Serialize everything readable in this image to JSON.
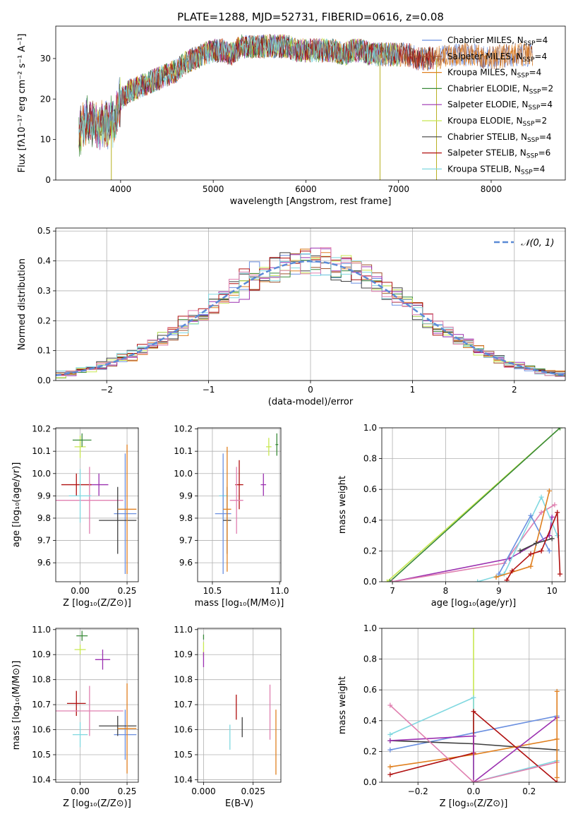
{
  "title": "PLATE=1288, MJD=52731, FIBERID=0616, z=0.08",
  "colors": {
    "chabrier_miles": "#6a8fe0",
    "salpeter_miles": "#a0522d",
    "kroupa_miles": "#e08020",
    "chabrier_elodie": "#3a8a3a",
    "salpeter_elodie": "#9b30b0",
    "kroupa_elodie": "#c8e850",
    "chabrier_stelib": "#404040",
    "salpeter_stelib": "#b01010",
    "kroupa_stelib": "#80d8e0",
    "pink": "#e080b0",
    "gaussian": "#5b8ad6"
  },
  "chart_data": [
    {
      "id": "spectrum",
      "type": "line",
      "xlabel": "wavelength [Angstrom, rest frame]",
      "ylabel": "Flux [fλ10⁻¹⁷ erg cm⁻² s⁻¹ A⁻¹]",
      "xlim": [
        3300,
        8800
      ],
      "ylim": [
        0,
        38
      ],
      "xticks": [
        "4000",
        "5000",
        "6000",
        "7000",
        "8000"
      ],
      "yticks": [
        "0",
        "10",
        "20",
        "30"
      ],
      "legend_position": "top-right",
      "legend": [
        {
          "label": "Chabrier MILES, N",
          "sub": "SSP",
          "val": "=4"
        },
        {
          "label": "Salpeter MILES, N",
          "sub": "SSP",
          "val": "=4"
        },
        {
          "label": "Kroupa MILES, N",
          "sub": "SSP",
          "val": "=4"
        },
        {
          "label": "Chabrier ELODIE, N",
          "sub": "SSP",
          "val": "=2"
        },
        {
          "label": "Salpeter ELODIE, N",
          "sub": "SSP",
          "val": "=4"
        },
        {
          "label": "Kroupa ELODIE, N",
          "sub": "SSP",
          "val": "=2"
        },
        {
          "label": "Chabrier STELIB, N",
          "sub": "SSP",
          "val": "=4"
        },
        {
          "label": "Salpeter STELIB, N",
          "sub": "SSP",
          "val": "=6"
        },
        {
          "label": "Kroupa STELIB, N",
          "sub": "SSP",
          "val": "=4"
        }
      ],
      "envelope": [
        [
          3550,
          12
        ],
        [
          3650,
          15
        ],
        [
          3750,
          13
        ],
        [
          3850,
          14
        ],
        [
          3950,
          15
        ],
        [
          4000,
          20
        ],
        [
          4100,
          22
        ],
        [
          4200,
          23
        ],
        [
          4300,
          24
        ],
        [
          4400,
          25
        ],
        [
          4500,
          26
        ],
        [
          4600,
          27
        ],
        [
          4700,
          29
        ],
        [
          4800,
          30
        ],
        [
          4900,
          31
        ],
        [
          5000,
          32
        ],
        [
          5100,
          32
        ],
        [
          5200,
          31
        ],
        [
          5300,
          33
        ],
        [
          5400,
          33
        ],
        [
          5500,
          33
        ],
        [
          5600,
          33
        ],
        [
          5700,
          33
        ],
        [
          5800,
          33
        ],
        [
          5900,
          32
        ],
        [
          6000,
          32
        ],
        [
          6100,
          32
        ],
        [
          6200,
          32
        ],
        [
          6300,
          32
        ],
        [
          6400,
          31
        ],
        [
          6500,
          32
        ],
        [
          6600,
          32
        ],
        [
          6700,
          31
        ],
        [
          6800,
          31
        ],
        [
          6900,
          31
        ],
        [
          7000,
          31
        ],
        [
          7100,
          31
        ],
        [
          7200,
          30
        ],
        [
          7300,
          30
        ],
        [
          7400,
          30
        ],
        [
          7600,
          31
        ],
        [
          7800,
          31
        ],
        [
          8000,
          30
        ],
        [
          8200,
          31
        ],
        [
          8400,
          31
        ]
      ],
      "noise": 3,
      "dips": [
        [
          3900,
          0
        ],
        [
          6800,
          0
        ],
        [
          7410,
          0
        ]
      ]
    },
    {
      "id": "residuals",
      "type": "histogram",
      "xlabel": "(data-model)/error",
      "ylabel": "Normed distribution",
      "xlim": [
        -2.5,
        2.5
      ],
      "ylim": [
        0,
        0.51
      ],
      "xticks": [
        "−2",
        "−1",
        "0",
        "1",
        "2"
      ],
      "yticks": [
        "0.0",
        "0.1",
        "0.2",
        "0.3",
        "0.4",
        "0.5"
      ],
      "bin_width": 0.1,
      "gaussian_label": "𝒩(0, 1)",
      "legend_position": "top-right"
    },
    {
      "id": "age_vs_Z",
      "type": "errorbar",
      "xlabel": "Z [log₁₀(Z/Z⊙)]",
      "ylabel": "age  [log₁₀(age/yr)]",
      "xlim": [
        -0.13,
        0.31
      ],
      "ylim": [
        9.515,
        10.205
      ],
      "xticks": [
        "0.00",
        "0.25"
      ],
      "yticks": [
        "9.6",
        "9.7",
        "9.8",
        "9.9",
        "10.0",
        "10.1",
        "10.2"
      ],
      "points": [
        {
          "c": "kroupa_elodie",
          "x": 0.0,
          "y": 10.12,
          "ex": 0.03,
          "ey": 0.05
        },
        {
          "c": "chabrier_elodie",
          "x": 0.01,
          "y": 10.15,
          "ex": 0.05,
          "ey": 0.03
        },
        {
          "c": "salpeter_elodie",
          "x": 0.1,
          "y": 9.95,
          "ex": 0.05,
          "ey": 0.05
        },
        {
          "c": "salpeter_stelib",
          "x": -0.02,
          "y": 9.95,
          "ex": 0.08,
          "ey": 0.05
        },
        {
          "c": "pink",
          "x": 0.05,
          "y": 9.88,
          "ex": 0.18,
          "ey": 0.15
        },
        {
          "c": "kroupa_stelib",
          "x": 0.0,
          "y": 9.9,
          "ex": 0.06,
          "ey": 0.12
        },
        {
          "c": "chabrier_miles",
          "x": 0.24,
          "y": 9.82,
          "ex": 0.06,
          "ey": 0.27
        },
        {
          "c": "chabrier_stelib",
          "x": 0.2,
          "y": 9.79,
          "ex": 0.1,
          "ey": 0.15
        },
        {
          "c": "kroupa_miles",
          "x": 0.25,
          "y": 9.84,
          "ex": 0.05,
          "ey": 0.29
        }
      ]
    },
    {
      "id": "age_vs_mass",
      "type": "errorbar",
      "xlabel": "mass [log₁₀(M/M⊙)]",
      "ylabel": "",
      "xlim": [
        10.39,
        11.01
      ],
      "ylim": [
        9.515,
        10.205
      ],
      "xticks": [
        "10.5",
        "11.0"
      ],
      "yticks": [
        "9.6",
        "9.7",
        "9.8",
        "9.9",
        "10.0",
        "10.1",
        "10.2"
      ],
      "points": [
        {
          "c": "kroupa_elodie",
          "x": 10.92,
          "y": 10.12,
          "ex": 0.02,
          "ey": 0.04
        },
        {
          "c": "chabrier_elodie",
          "x": 10.98,
          "y": 10.13,
          "ex": 0.01,
          "ey": 0.05
        },
        {
          "c": "salpeter_elodie",
          "x": 10.88,
          "y": 9.95,
          "ex": 0.02,
          "ey": 0.05
        },
        {
          "c": "salpeter_stelib",
          "x": 10.7,
          "y": 9.95,
          "ex": 0.03,
          "ey": 0.11
        },
        {
          "c": "pink",
          "x": 10.68,
          "y": 9.88,
          "ex": 0.05,
          "ey": 0.15
        },
        {
          "c": "kroupa_stelib",
          "x": 10.58,
          "y": 9.9,
          "ex": 0.03,
          "ey": 0.12
        },
        {
          "c": "chabrier_miles",
          "x": 10.58,
          "y": 9.82,
          "ex": 0.06,
          "ey": 0.27
        },
        {
          "c": "chabrier_stelib",
          "x": 10.61,
          "y": 9.79,
          "ex": 0.03,
          "ey": 0.15
        },
        {
          "c": "kroupa_miles",
          "x": 10.61,
          "y": 9.84,
          "ex": 0.03,
          "ey": 0.28
        }
      ]
    },
    {
      "id": "weight_vs_age",
      "type": "line",
      "xlabel": "age  [log₁₀(age/yr)]",
      "ylabel": "mass weight",
      "xlim": [
        6.8,
        10.25
      ],
      "ylim": [
        0,
        1
      ],
      "xticks": [
        "7",
        "8",
        "9",
        "10"
      ],
      "yticks": [
        "0.0",
        "0.2",
        "0.4",
        "0.6",
        "0.8",
        "1.0"
      ],
      "series": [
        {
          "c": "kroupa_elodie",
          "pts": [
            [
              6.9,
              0
            ],
            [
              10.15,
              1
            ]
          ]
        },
        {
          "c": "chabrier_elodie",
          "pts": [
            [
              6.95,
              0
            ],
            [
              10.15,
              1
            ]
          ]
        },
        {
          "c": "salpeter_elodie",
          "pts": [
            [
              7.0,
              0
            ],
            [
              9.2,
              0.15
            ],
            [
              9.95,
              0.3
            ],
            [
              10.0,
              0.42
            ]
          ]
        },
        {
          "c": "pink",
          "pts": [
            [
              7.0,
              0
            ],
            [
              9.1,
              0.12
            ],
            [
              9.8,
              0.45
            ],
            [
              10.05,
              0.5
            ]
          ]
        },
        {
          "c": "kroupa_stelib",
          "pts": [
            [
              8.6,
              0
            ],
            [
              9.1,
              0.05
            ],
            [
              9.8,
              0.55
            ],
            [
              10.1,
              0.3
            ]
          ]
        },
        {
          "c": "chabrier_miles",
          "pts": [
            [
              9.0,
              0.05
            ],
            [
              9.6,
              0.43
            ],
            [
              9.95,
              0.2
            ]
          ]
        },
        {
          "c": "kroupa_miles",
          "pts": [
            [
              8.95,
              0.03
            ],
            [
              9.6,
              0.1
            ],
            [
              9.95,
              0.59
            ]
          ]
        },
        {
          "c": "chabrier_stelib",
          "pts": [
            [
              9.4,
              0.2
            ],
            [
              9.7,
              0.25
            ],
            [
              10.0,
              0.28
            ]
          ]
        },
        {
          "c": "salpeter_stelib",
          "pts": [
            [
              9.15,
              0.01
            ],
            [
              9.25,
              0.07
            ],
            [
              9.6,
              0.18
            ],
            [
              9.8,
              0.2
            ],
            [
              10.1,
              0.45
            ],
            [
              10.15,
              0.05
            ]
          ]
        }
      ]
    },
    {
      "id": "mass_vs_Z",
      "type": "errorbar",
      "xlabel": "Z [log₁₀(Z/Z⊙)]",
      "ylabel": "mass [log₁₀(M/M⊙)]",
      "xlim": [
        -0.13,
        0.31
      ],
      "ylim": [
        10.39,
        11.005
      ],
      "xticks": [
        "0.00",
        "0.25"
      ],
      "yticks": [
        "10.4",
        "10.5",
        "10.6",
        "10.7",
        "10.8",
        "10.9",
        "11.0"
      ],
      "points": [
        {
          "c": "chabrier_elodie",
          "x": 0.01,
          "y": 10.975,
          "ex": 0.03,
          "ey": 0.02
        },
        {
          "c": "kroupa_elodie",
          "x": 0.0,
          "y": 10.92,
          "ex": 0.03,
          "ey": 0.02
        },
        {
          "c": "salpeter_elodie",
          "x": 0.12,
          "y": 10.88,
          "ex": 0.04,
          "ey": 0.04
        },
        {
          "c": "salpeter_stelib",
          "x": -0.02,
          "y": 10.705,
          "ex": 0.05,
          "ey": 0.05
        },
        {
          "c": "pink",
          "x": 0.05,
          "y": 10.675,
          "ex": 0.18,
          "ey": 0.1
        },
        {
          "c": "kroupa_stelib",
          "x": 0.0,
          "y": 10.58,
          "ex": 0.04,
          "ey": 0.05
        },
        {
          "c": "chabrier_miles",
          "x": 0.24,
          "y": 10.58,
          "ex": 0.06,
          "ey": 0.1
        },
        {
          "c": "chabrier_stelib",
          "x": 0.2,
          "y": 10.615,
          "ex": 0.1,
          "ey": 0.04
        },
        {
          "c": "kroupa_miles",
          "x": 0.25,
          "y": 10.605,
          "ex": 0.05,
          "ey": 0.18
        }
      ]
    },
    {
      "id": "mass_vs_ebv",
      "type": "errorbar",
      "xlabel": "E(B-V)",
      "ylabel": "",
      "xlim": [
        -0.003,
        0.039
      ],
      "ylim": [
        10.39,
        11.005
      ],
      "xticks": [
        "0.000",
        "0.025"
      ],
      "yticks": [
        "10.4",
        "10.5",
        "10.6",
        "10.7",
        "10.8",
        "10.9",
        "11.0"
      ],
      "points": [
        {
          "c": "chabrier_elodie",
          "x": 0.0,
          "y": 10.97,
          "ex": 0.0,
          "ey": 0.01
        },
        {
          "c": "kroupa_elodie",
          "x": 0.0,
          "y": 10.92,
          "ex": 0.0,
          "ey": 0.03
        },
        {
          "c": "salpeter_elodie",
          "x": 0.0,
          "y": 10.88,
          "ex": 0.0,
          "ey": 0.03
        },
        {
          "c": "salpeter_stelib",
          "x": 0.0165,
          "y": 10.69,
          "ex": 0.0,
          "ey": 0.05
        },
        {
          "c": "chabrier_stelib",
          "x": 0.0195,
          "y": 10.61,
          "ex": 0.0,
          "ey": 0.04
        },
        {
          "c": "kroupa_stelib",
          "x": 0.0133,
          "y": 10.57,
          "ex": 0.0,
          "ey": 0.05
        },
        {
          "c": "pink",
          "x": 0.0335,
          "y": 10.67,
          "ex": 0.0,
          "ey": 0.11
        },
        {
          "c": "kroupa_miles",
          "x": 0.0365,
          "y": 10.55,
          "ex": 0.0,
          "ey": 0.13
        }
      ]
    },
    {
      "id": "weight_vs_Z",
      "type": "line",
      "xlabel": "Z [log₁₀(Z/Z⊙)]",
      "ylabel": "mass weight",
      "xlim": [
        -0.33,
        0.33
      ],
      "ylim": [
        0,
        1
      ],
      "xticks": [
        "−0.2",
        "0.0",
        "0.2"
      ],
      "yticks": [
        "0.0",
        "0.2",
        "0.4",
        "0.6",
        "0.8",
        "1.0"
      ],
      "series": [
        {
          "c": "kroupa_elodie",
          "pts": [
            [
              0.0,
              1.0
            ],
            [
              0.0,
              0.0
            ]
          ]
        },
        {
          "c": "chabrier_miles",
          "pts": [
            [
              -0.3,
              0.21
            ],
            [
              0.0,
              0.32
            ],
            [
              0.3,
              0.43
            ]
          ]
        },
        {
          "c": "kroupa_stelib",
          "pts": [
            [
              -0.3,
              0.31
            ],
            [
              0.0,
              0.55
            ],
            [
              0.0,
              0.0
            ],
            [
              0.3,
              0.14
            ]
          ]
        },
        {
          "c": "chabrier_stelib",
          "pts": [
            [
              -0.3,
              0.27
            ],
            [
              0.0,
              0.25
            ],
            [
              0.3,
              0.21
            ]
          ]
        },
        {
          "c": "kroupa_miles",
          "pts": [
            [
              -0.3,
              0.1
            ],
            [
              0.0,
              0.18
            ],
            [
              0.3,
              0.28
            ]
          ]
        },
        {
          "c": "salpeter_stelib",
          "pts": [
            [
              -0.3,
              0.05
            ],
            [
              0.0,
              0.19
            ],
            [
              0.0,
              0.46
            ],
            [
              0.3,
              0.0
            ]
          ]
        },
        {
          "c": "salpeter_elodie",
          "pts": [
            [
              -0.3,
              0.27
            ],
            [
              0.0,
              0.3
            ],
            [
              0.0,
              0.0
            ],
            [
              0.3,
              0.42
            ]
          ]
        },
        {
          "c": "pink",
          "pts": [
            [
              -0.3,
              0.5
            ],
            [
              0.0,
              0.0
            ],
            [
              0.3,
              0.13
            ]
          ]
        },
        {
          "c": "kroupa_miles",
          "pts": [
            [
              0.3,
              0.59
            ],
            [
              0.3,
              0.03
            ]
          ]
        }
      ]
    }
  ]
}
